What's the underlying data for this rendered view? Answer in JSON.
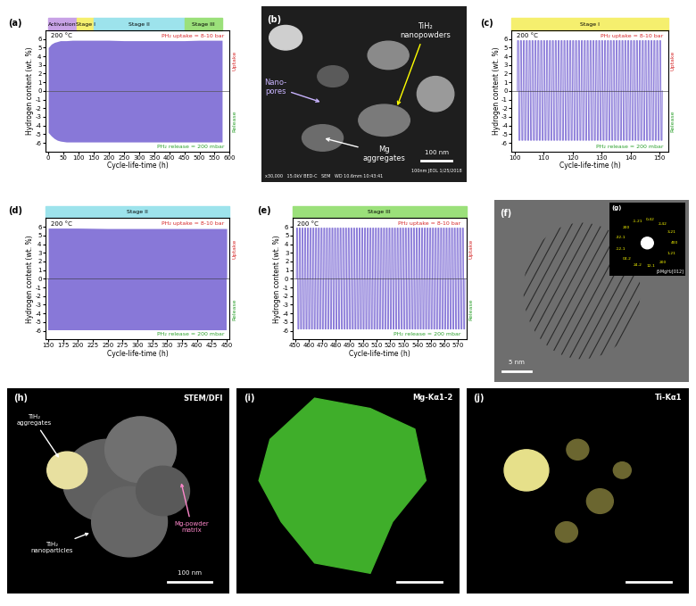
{
  "chart_data": [
    {
      "panel": "(a)",
      "type": "area",
      "x_label": "Cycle-life-time (h)",
      "y_label": "Hydrogen content (wt. %)",
      "xlim": [
        -10,
        600
      ],
      "xticks": [
        0,
        50,
        100,
        150,
        200,
        250,
        300,
        350,
        400,
        450,
        500,
        550,
        600
      ],
      "ylim": [
        -7,
        7
      ],
      "yticks": [
        -6,
        -5,
        -4,
        -3,
        -2,
        -1,
        0,
        1,
        2,
        3,
        4,
        5,
        6
      ],
      "color": "#8878d8",
      "stages": [
        {
          "name": "Activation",
          "start": 0,
          "end": 95,
          "color": "#c8a2e6"
        },
        {
          "name": "Stage I",
          "start": 95,
          "end": 150,
          "color": "#f5ef6e"
        },
        {
          "name": "Stage II",
          "start": 150,
          "end": 450,
          "color": "#9de3ec"
        },
        {
          "name": "Stage III",
          "start": 450,
          "end": 575,
          "color": "#9be07a"
        }
      ],
      "annotations": {
        "temperature": "200 °C",
        "uptake_pressure": "PH₂ uptake = 8-10 bar",
        "release_pressure": "PH₂ release = 200 mbar",
        "uptake": "Uptake",
        "release": "Release"
      },
      "band": {
        "x": [
          0,
          10,
          20,
          30,
          40,
          60,
          80,
          100,
          150,
          200,
          250,
          300,
          350,
          400,
          450,
          500,
          575
        ],
        "uptake": [
          5.0,
          5.4,
          5.6,
          5.7,
          5.8,
          5.8,
          5.85,
          5.85,
          5.85,
          5.85,
          5.8,
          5.8,
          5.8,
          5.8,
          5.8,
          5.85,
          5.85
        ],
        "release": [
          -4.8,
          -5.2,
          -5.5,
          -5.7,
          -5.8,
          -5.9,
          -5.9,
          -5.9,
          -5.9,
          -5.9,
          -5.9,
          -5.9,
          -5.9,
          -5.9,
          -5.9,
          -5.9,
          -5.9
        ]
      }
    },
    {
      "panel": "(c)",
      "type": "line",
      "x_label": "Cycle-life-time (h)",
      "y_label": "Hydrogen content (wt. %)",
      "xlim": [
        99,
        153
      ],
      "xticks": [
        100,
        110,
        120,
        130,
        140,
        150
      ],
      "ylim": [
        -7,
        7
      ],
      "yticks": [
        -6,
        -5,
        -4,
        -3,
        -2,
        -1,
        0,
        1,
        2,
        3,
        4,
        5,
        6
      ],
      "color": "#8878d8",
      "stages": [
        {
          "name": "Stage I",
          "start": 99,
          "end": 153,
          "color": "#f5ef6e"
        }
      ],
      "annotations": {
        "temperature": "200 °C",
        "uptake_pressure": "PH₂ uptake = 8-10 bar",
        "release_pressure": "PH₂ release = 200 mbar",
        "uptake": "Uptake",
        "release": "Release"
      },
      "cycles": {
        "x": [
          101,
          102,
          103,
          104,
          105,
          106,
          107,
          108,
          109,
          110,
          111,
          112,
          113,
          114,
          115,
          116,
          117,
          118,
          119,
          120,
          121,
          122,
          123,
          124,
          125,
          126,
          127,
          128,
          129,
          130,
          131,
          132,
          133,
          134,
          135,
          136,
          137,
          138,
          139,
          140,
          141,
          142,
          143,
          144,
          145,
          146,
          147,
          148,
          149,
          150
        ],
        "uptake": 5.8,
        "release": -5.7
      }
    },
    {
      "panel": "(d)",
      "type": "area",
      "x_label": "Cycle-life-time (h)",
      "y_label": "Hydrogen content (wt. %)",
      "xlim": [
        145,
        455
      ],
      "xticks": [
        150,
        175,
        200,
        225,
        250,
        275,
        300,
        325,
        350,
        375,
        400,
        425,
        450
      ],
      "ylim": [
        -7,
        7
      ],
      "yticks": [
        -6,
        -5,
        -4,
        -3,
        -2,
        -1,
        0,
        1,
        2,
        3,
        4,
        5,
        6
      ],
      "color": "#8878d8",
      "stages": [
        {
          "name": "Stage II",
          "start": 145,
          "end": 455,
          "color": "#9de3ec"
        }
      ],
      "annotations": {
        "temperature": "200 °C",
        "uptake_pressure": "PH₂ uptake = 8-10 bar",
        "release_pressure": "PH₂ release = 200 mbar",
        "uptake": "Uptake",
        "release": "Release"
      },
      "band": {
        "x": [
          150,
          200,
          250,
          300,
          350,
          400,
          450
        ],
        "uptake": [
          5.85,
          5.85,
          5.8,
          5.8,
          5.8,
          5.8,
          5.8
        ],
        "release": [
          -5.9,
          -5.9,
          -5.9,
          -5.9,
          -5.9,
          -5.9,
          -5.9
        ]
      }
    },
    {
      "panel": "(e)",
      "type": "line",
      "x_label": "Cycle-life-time (h)",
      "y_label": "Hydrogen content (wt. %)",
      "xlim": [
        448,
        576
      ],
      "xticks": [
        450,
        460,
        470,
        480,
        490,
        500,
        510,
        520,
        530,
        540,
        550,
        560,
        570
      ],
      "ylim": [
        -7,
        7
      ],
      "yticks": [
        -6,
        -5,
        -4,
        -3,
        -2,
        -1,
        0,
        1,
        2,
        3,
        4,
        5,
        6
      ],
      "color": "#8878d8",
      "stages": [
        {
          "name": "Stage III",
          "start": 448,
          "end": 576,
          "color": "#9be07a"
        }
      ],
      "annotations": {
        "temperature": "200 °C",
        "uptake_pressure": "PH₂ uptake = 8-10 bar",
        "release_pressure": "PH₂ release = 200 mbar",
        "uptake": "Uptake",
        "release": "Release"
      },
      "cycles": {
        "x": [
          451,
          453,
          455,
          457,
          459,
          461,
          463,
          465,
          467,
          469,
          471,
          473,
          475,
          477,
          479,
          481,
          483,
          485,
          487,
          489,
          491,
          493,
          495,
          497,
          499,
          501,
          503,
          505,
          507,
          509,
          511,
          513,
          515,
          517,
          519,
          521,
          523,
          525,
          527,
          529,
          531,
          533,
          535,
          537,
          539,
          541,
          543,
          545,
          547,
          549,
          551,
          553,
          555,
          557,
          559,
          561,
          563,
          565,
          567,
          569,
          571,
          573
        ],
        "uptake": 5.85,
        "release": -5.8
      }
    }
  ],
  "images": {
    "b": {
      "panel": "(b)",
      "labels": {
        "tih2": "TiH₂\nnanopowders",
        "pores": "Nano-\npores",
        "mg": "Mg\naggregates"
      },
      "scale_bar": "100 nm",
      "header": "100nm JEOL 1/25/2018",
      "footer": "x30,000   15.0kV BED-C   SEM   WD 10.6mm 10:43:41"
    },
    "f": {
      "panel": "(f)",
      "scale_bar": "5 nm"
    },
    "g": {
      "panel": "(g)",
      "zone": "β-MgH₂[012]",
      "spots": [
        "400",
        "3-21",
        "2-42",
        "0-42",
        "-1-21",
        "200",
        "-32-1",
        "-12-1",
        "04-2",
        "24-2",
        "12-1",
        "200",
        "1-21"
      ]
    },
    "h": {
      "panel": "(h)",
      "title": "STEM/DFI",
      "labels": {
        "agg": "TiH₂\naggregates",
        "matrix": "Mg-powder\nmatrix",
        "nano": "TiH₂\nnanoparticles"
      },
      "scale_bar": "100 nm"
    },
    "i": {
      "panel": "(i)",
      "title": "Mg-Kα1-2"
    },
    "j": {
      "panel": "(j)",
      "title": "Ti-Kα1"
    }
  }
}
